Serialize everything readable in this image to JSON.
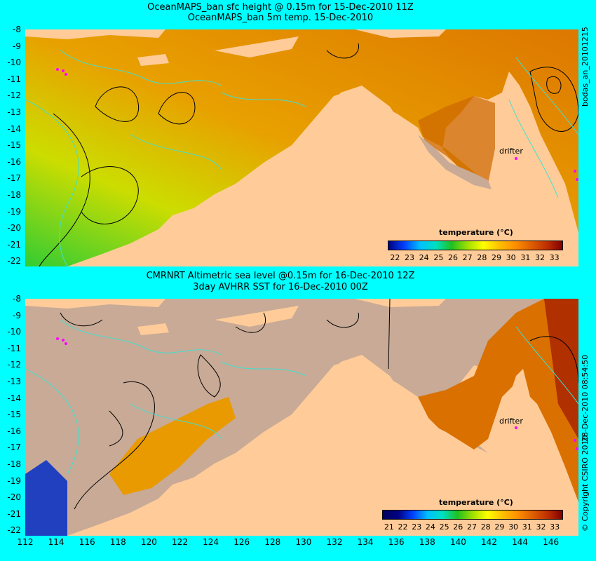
{
  "top": {
    "title_line1": "OceanMAPS_ban sfc height @ 0.15m for 15-Dec-2010 11Z",
    "title_line2": "OceanMAPS_ban 5m temp. 15-Dec-2010",
    "side_label": "bodas_an_20101215",
    "colorbar": {
      "title": "temperature (°C)",
      "labels": [
        "22",
        "23",
        "24",
        "25",
        "26",
        "27",
        "28",
        "29",
        "30",
        "31",
        "32",
        "33"
      ]
    },
    "drifter_label": "drifter"
  },
  "bottom": {
    "title_line1": "CMRNRT Altimetric sea level  @0.15m  for 16-Dec-2010 12Z",
    "title_line2": "3day AVHRR SST for 16-Dec-2010 00Z",
    "side_label1": "28-Dec-2010 08:54:50",
    "side_label2": "© Copyright CSIRO 2010",
    "colorbar": {
      "title": "temperature (°C)",
      "labels": [
        "21",
        "22",
        "23",
        "24",
        "25",
        "26",
        "27",
        "28",
        "29",
        "30",
        "31",
        "32",
        "33"
      ]
    },
    "drifter_label": "drifter"
  },
  "lat_labels": [
    "-8",
    "-9",
    "-10",
    "-11",
    "-12",
    "-13",
    "-14",
    "-15",
    "-16",
    "-17",
    "-18",
    "-19",
    "-20",
    "-21",
    "-22"
  ],
  "lon_labels": [
    "112",
    "114",
    "116",
    "118",
    "120",
    "122",
    "124",
    "126",
    "128",
    "130",
    "132",
    "134",
    "136",
    "138",
    "140",
    "142",
    "144",
    "146"
  ],
  "colors": {
    "background": "#00ffff",
    "land": "#ffcc99",
    "no_data": "#c8aa96",
    "contour_ssh": "#000000",
    "contour_alt": "#40e0d0",
    "drifter": "#ff00ff"
  }
}
